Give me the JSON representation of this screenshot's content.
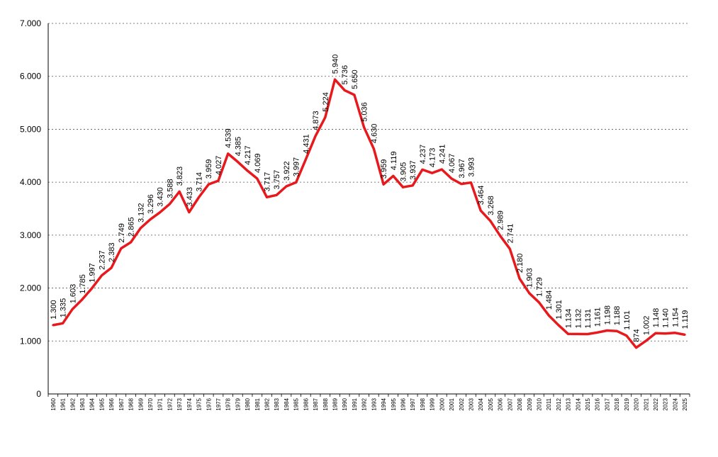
{
  "chart_data": {
    "type": "line",
    "title": "",
    "xlabel": "",
    "ylabel": "",
    "ylim": [
      0,
      7000
    ],
    "yticks": [
      0,
      1000,
      2000,
      3000,
      4000,
      5000,
      6000,
      7000
    ],
    "ytick_labels": [
      "0",
      "1.000",
      "2.000",
      "3.000",
      "4.000",
      "5.000",
      "6.000",
      "7.000"
    ],
    "grid": "horizontal dotted",
    "line_color": "#e8191c",
    "x": [
      1960,
      1961,
      1962,
      1963,
      1964,
      1965,
      1966,
      1967,
      1968,
      1969,
      1970,
      1971,
      1972,
      1973,
      1974,
      1975,
      1976,
      1977,
      1978,
      1979,
      1980,
      1981,
      1982,
      1983,
      1984,
      1985,
      1986,
      1987,
      1988,
      1989,
      1990,
      1991,
      1992,
      1993,
      1994,
      1995,
      1996,
      1997,
      1998,
      1999,
      2000,
      2001,
      2002,
      2003,
      2004,
      2005,
      2006,
      2007,
      2008,
      2009,
      2010,
      2011,
      2012,
      2013,
      2014,
      2015,
      2016,
      2017,
      2018,
      2019,
      2020,
      2021,
      2022,
      2023,
      2024,
      2025
    ],
    "values": [
      1300,
      1335,
      1603,
      1785,
      1997,
      2237,
      2383,
      2749,
      2865,
      3132,
      3296,
      3430,
      3588,
      3823,
      3433,
      3714,
      3959,
      4027,
      4539,
      4385,
      4217,
      4069,
      3717,
      3757,
      3922,
      3997,
      4431,
      4873,
      5224,
      5940,
      5736,
      5650,
      5036,
      4630,
      3959,
      4119,
      3905,
      3937,
      4237,
      4173,
      4241,
      4067,
      3967,
      3993,
      3464,
      3268,
      2989,
      2741,
      2180,
      1903,
      1729,
      1484,
      1301,
      1134,
      1132,
      1131,
      1161,
      1198,
      1188,
      1101,
      874,
      1002,
      1148,
      1140,
      1154,
      1119
    ],
    "data_labels": [
      "1.300",
      "1.335",
      "1.603",
      "1.785",
      "1.997",
      "2.237",
      "2.383",
      "2.749",
      "2.865",
      "3.132",
      "3.296",
      "3.430",
      "3.588",
      "3.823",
      "3.433",
      "3.714",
      "3.959",
      "4.027",
      "4.539",
      "4.385",
      "4.217",
      "4.069",
      "3.717",
      "3.757",
      "3.922",
      "3.997",
      "4.431",
      "4.873",
      "5.224",
      "5.940",
      "5.736",
      "5.650",
      "5.036",
      "4.630",
      "3.959",
      "4.119",
      "3.905",
      "3.937",
      "4.237",
      "4.173",
      "4.241",
      "4.067",
      "3.967",
      "3.993",
      "3.464",
      "3.268",
      "2.989",
      "2.741",
      "2.180",
      "1.903",
      "1.729",
      "1.484",
      "1.301",
      "1.134",
      "1.132",
      "1.131",
      "1.161",
      "1.198",
      "1.188",
      "1.101",
      "874",
      "1.002",
      "1.148",
      "1.140",
      "1.154",
      "1.119"
    ]
  }
}
